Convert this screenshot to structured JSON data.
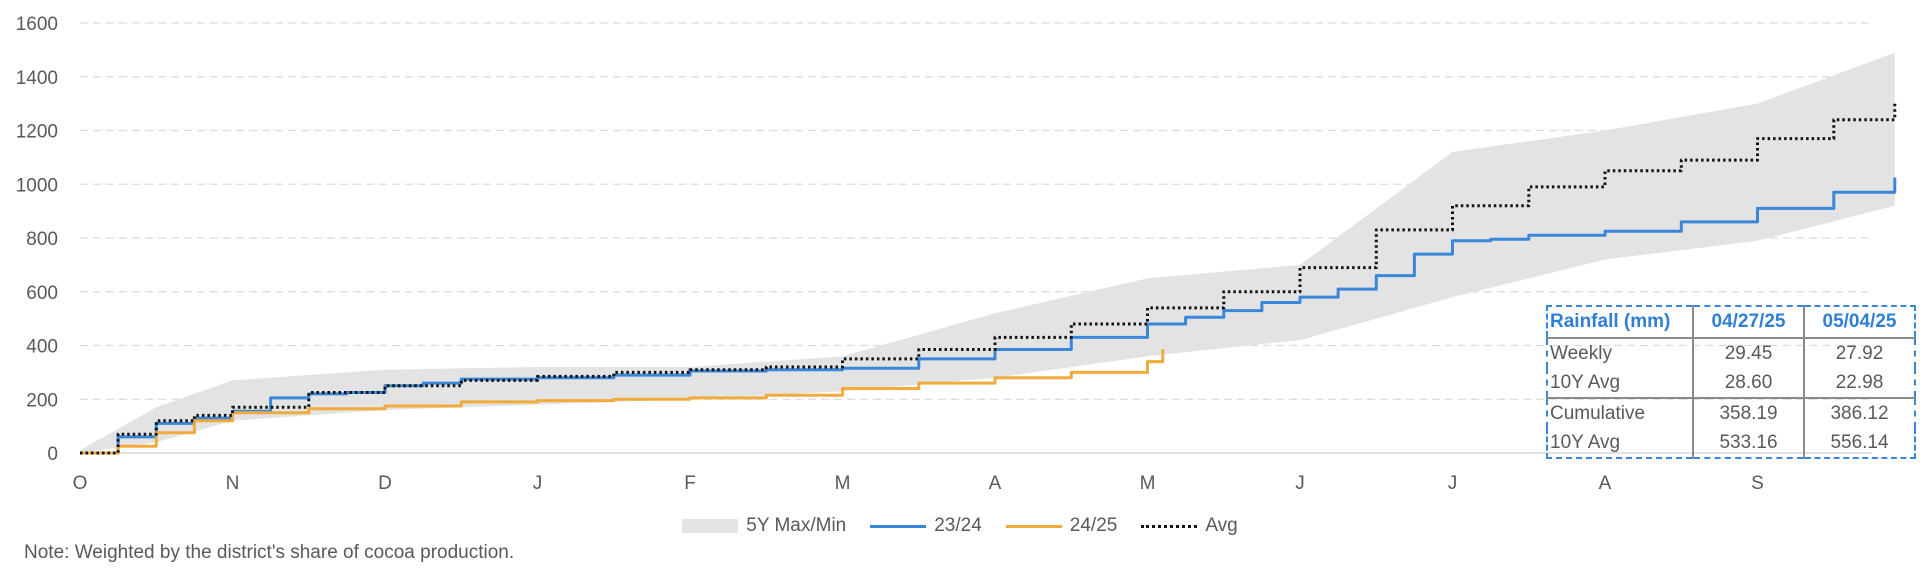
{
  "chart_data": {
    "type": "line",
    "x_labels": [
      "O",
      "N",
      "D",
      "J",
      "F",
      "M",
      "A",
      "M",
      "J",
      "J",
      "A",
      "S"
    ],
    "y_ticks": [
      0,
      200,
      400,
      600,
      800,
      1000,
      1200,
      1400,
      1600
    ],
    "ylim": [
      0,
      1600
    ],
    "grid": true,
    "legend_placement": "bottom",
    "band": {
      "name": "5Y Max/Min",
      "color": "#e3e3e3",
      "x": [
        0,
        0.5,
        1,
        2,
        3,
        4,
        5,
        6,
        7,
        8,
        9,
        10,
        11,
        11.9
      ],
      "max": [
        10,
        170,
        270,
        310,
        320,
        320,
        360,
        520,
        650,
        700,
        1120,
        1200,
        1300,
        1490
      ],
      "min": [
        0,
        40,
        120,
        160,
        180,
        200,
        230,
        280,
        360,
        420,
        580,
        720,
        790,
        920
      ]
    },
    "series": [
      {
        "name": "23/24",
        "color": "#3a86d9",
        "style": "solid",
        "x": [
          0,
          0.25,
          0.5,
          0.75,
          1,
          1.25,
          1.5,
          1.75,
          2,
          2.25,
          2.5,
          3,
          3.5,
          4,
          4.5,
          5,
          5.5,
          6,
          6.5,
          7,
          7.25,
          7.5,
          7.75,
          8,
          8.25,
          8.5,
          8.75,
          9,
          9.25,
          9.5,
          10,
          10.5,
          11,
          11.5,
          11.9
        ],
        "values": [
          0,
          60,
          110,
          130,
          155,
          205,
          220,
          225,
          250,
          260,
          275,
          280,
          290,
          305,
          310,
          315,
          350,
          385,
          430,
          480,
          505,
          530,
          560,
          580,
          610,
          660,
          740,
          790,
          795,
          810,
          825,
          860,
          910,
          970,
          1025
        ]
      },
      {
        "name": "24/25",
        "color": "#f0ab3c",
        "style": "solid",
        "x": [
          0,
          0.25,
          0.5,
          0.75,
          1,
          1.5,
          2,
          2.5,
          3,
          3.5,
          4,
          4.5,
          5,
          5.5,
          6,
          6.5,
          7,
          7.1
        ],
        "values": [
          0,
          25,
          75,
          120,
          150,
          165,
          175,
          190,
          195,
          200,
          205,
          215,
          240,
          260,
          280,
          300,
          340,
          386
        ]
      },
      {
        "name": "Avg",
        "color": "#111111",
        "style": "dotted",
        "x": [
          0,
          0.25,
          0.5,
          0.75,
          1,
          1.5,
          2,
          2.5,
          3,
          3.5,
          4,
          4.5,
          5,
          5.5,
          6,
          6.5,
          7,
          7.5,
          8,
          8.5,
          9,
          9.5,
          10,
          10.5,
          11,
          11.5,
          11.9
        ],
        "values": [
          0,
          70,
          120,
          140,
          170,
          225,
          250,
          270,
          285,
          300,
          310,
          320,
          350,
          385,
          430,
          480,
          540,
          600,
          690,
          830,
          920,
          990,
          1050,
          1090,
          1170,
          1240,
          1305
        ]
      }
    ]
  },
  "legend": {
    "band_label": "5Y Max/Min",
    "series1_label": "23/24",
    "series2_label": "24/25",
    "avg_label": "Avg"
  },
  "note": "Note: Weighted by the district's share of cocoa production.",
  "table": {
    "header": [
      "Rainfall (mm)",
      "04/27/25",
      "05/04/25"
    ],
    "rows": [
      [
        "Weekly",
        "29.45",
        "27.92"
      ],
      [
        "10Y Avg",
        "28.60",
        "22.98"
      ],
      [
        "Cumulative",
        "358.19",
        "386.12"
      ],
      [
        "10Y Avg",
        "533.16",
        "556.14"
      ]
    ]
  }
}
